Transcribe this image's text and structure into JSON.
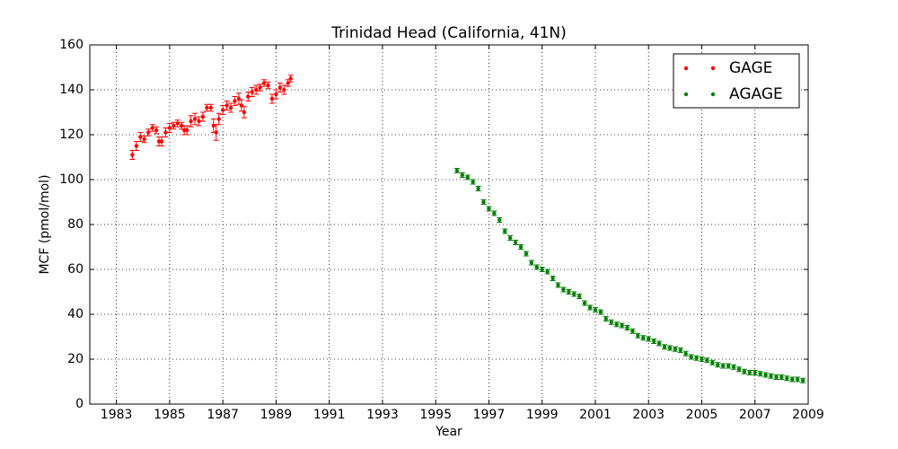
{
  "chart_data": {
    "type": "scatter",
    "title": "Trinidad Head (California, 41N)",
    "xlabel": "Year",
    "ylabel": "MCF (pmol/mol)",
    "xlim": [
      1982,
      2009
    ],
    "xticks": [
      1983,
      1985,
      1987,
      1989,
      1991,
      1993,
      1995,
      1997,
      1999,
      2001,
      2003,
      2005,
      2007,
      2009
    ],
    "ylim": [
      0,
      160
    ],
    "yticks": [
      0,
      20,
      40,
      60,
      80,
      100,
      120,
      140,
      160
    ],
    "grid": true,
    "legend": "upper right",
    "series": [
      {
        "name": "GAGE",
        "color": "#ff0000",
        "x": [
          1983.6,
          1983.75,
          1983.9,
          1984.05,
          1984.2,
          1984.35,
          1984.5,
          1984.6,
          1984.7,
          1984.85,
          1985.0,
          1985.15,
          1985.3,
          1985.45,
          1985.55,
          1985.65,
          1985.8,
          1985.95,
          1986.1,
          1986.25,
          1986.4,
          1986.55,
          1986.65,
          1986.75,
          1986.85,
          1987.0,
          1987.15,
          1987.3,
          1987.45,
          1987.6,
          1987.7,
          1987.8,
          1987.95,
          1988.1,
          1988.25,
          1988.4,
          1988.55,
          1988.7,
          1988.85,
          1989.0,
          1989.15,
          1989.3,
          1989.45,
          1989.55
        ],
        "values": [
          111,
          115,
          119,
          118,
          121,
          123,
          122,
          117,
          117,
          121,
          123,
          124,
          125,
          124,
          122,
          122,
          126,
          127,
          126,
          128,
          132,
          132,
          124,
          121,
          127,
          131,
          133,
          132,
          135,
          136,
          133,
          130,
          137,
          139,
          140,
          141,
          143,
          142,
          136,
          138,
          141,
          140,
          143,
          145
        ],
        "errors": [
          2,
          2,
          2,
          1.5,
          1.5,
          1.5,
          1.5,
          2,
          2,
          2,
          2,
          1.5,
          1.5,
          1.5,
          2,
          2,
          2.5,
          2.5,
          2,
          2,
          1.5,
          1.5,
          3,
          3.5,
          2.5,
          2,
          2,
          2,
          2,
          2.5,
          2.5,
          2.5,
          2,
          2,
          2,
          1.5,
          1.5,
          1.5,
          2,
          2,
          2,
          2,
          1.5,
          1.5
        ]
      },
      {
        "name": "AGAGE",
        "color": "#007f00",
        "x": [
          1995.8,
          1996.0,
          1996.2,
          1996.4,
          1996.6,
          1996.8,
          1997.0,
          1997.2,
          1997.4,
          1997.6,
          1997.8,
          1998.0,
          1998.2,
          1998.4,
          1998.6,
          1998.8,
          1999.0,
          1999.2,
          1999.4,
          1999.6,
          1999.8,
          2000.0,
          2000.2,
          2000.4,
          2000.6,
          2000.8,
          2001.0,
          2001.2,
          2001.4,
          2001.6,
          2001.8,
          2002.0,
          2002.2,
          2002.4,
          2002.6,
          2002.8,
          2003.0,
          2003.2,
          2003.4,
          2003.6,
          2003.8,
          2004.0,
          2004.2,
          2004.4,
          2004.6,
          2004.8,
          2005.0,
          2005.2,
          2005.4,
          2005.6,
          2005.8,
          2006.0,
          2006.2,
          2006.4,
          2006.6,
          2006.8,
          2007.0,
          2007.2,
          2007.4,
          2007.6,
          2007.8,
          2008.0,
          2008.2,
          2008.4,
          2008.6,
          2008.8
        ],
        "values": [
          104,
          102,
          101,
          99,
          96,
          90,
          87,
          85,
          82,
          77,
          74,
          72,
          70,
          67,
          63,
          61,
          60,
          59,
          56,
          53,
          51,
          50,
          49,
          48,
          45,
          43,
          42,
          41,
          38,
          36.5,
          35.5,
          35,
          34,
          32.5,
          30.5,
          29.5,
          29,
          28,
          27,
          25.5,
          25,
          24.5,
          24,
          22.5,
          21,
          20.5,
          20,
          19.5,
          18.5,
          17.5,
          17,
          17,
          16.5,
          15.5,
          14.5,
          14,
          14,
          13.5,
          13,
          12.5,
          12,
          12,
          11.5,
          11,
          11,
          10.5
        ],
        "errors": [
          1,
          1,
          1,
          1,
          1,
          1,
          1,
          1,
          1,
          1,
          1,
          1,
          1,
          1,
          1,
          1,
          1,
          1,
          1,
          1,
          1,
          1,
          1,
          1,
          1,
          1,
          1,
          1,
          1,
          1,
          1,
          1,
          1,
          1,
          1,
          1,
          1,
          1,
          1,
          1,
          1,
          1,
          1,
          1,
          1,
          1,
          1,
          1,
          1,
          1,
          1,
          1,
          1,
          1,
          1,
          1,
          1,
          1,
          1,
          1,
          1,
          1,
          1,
          1,
          1,
          1
        ]
      }
    ]
  }
}
